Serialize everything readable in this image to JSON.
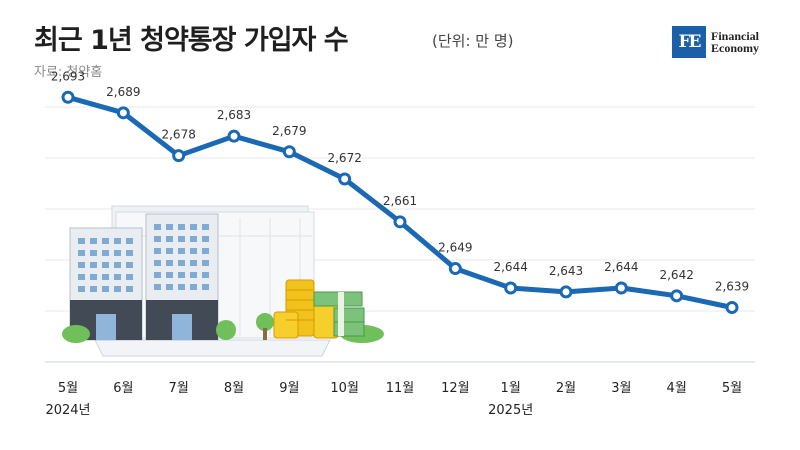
{
  "header": {
    "title": "최근 1년 청약통장 가입자 수",
    "unit": "(단위: 만 명)",
    "source": "자료: 청약홈"
  },
  "logo": {
    "mark": "FE",
    "line1": "Financial",
    "line2": "Economy",
    "color": "#1a5fa8"
  },
  "chart_data": {
    "type": "line",
    "title": "최근 1년 청약통장 가입자 수",
    "categories": [
      "5월",
      "6월",
      "7월",
      "8월",
      "9월",
      "10월",
      "11월",
      "12월",
      "1월",
      "2월",
      "3월",
      "4월",
      "5월"
    ],
    "year_labels": [
      {
        "index": 0,
        "label": "2024년"
      },
      {
        "index": 8,
        "label": "2025년"
      }
    ],
    "series": [
      {
        "values": [
          2693,
          2689,
          2678,
          2683,
          2679,
          2672,
          2661,
          2649,
          2644,
          2643,
          2644,
          2642,
          2639
        ]
      }
    ],
    "value_labels": [
      "2,693",
      "2,689",
      "2,678",
      "2,683",
      "2,679",
      "2,672",
      "2,661",
      "2,649",
      "2,644",
      "2,643",
      "2,644",
      "2,642",
      "2,639"
    ],
    "ylim": [
      2625,
      2700
    ],
    "grid": true,
    "line_color": "#1b69b5",
    "marker_fill": "#ffffff"
  }
}
